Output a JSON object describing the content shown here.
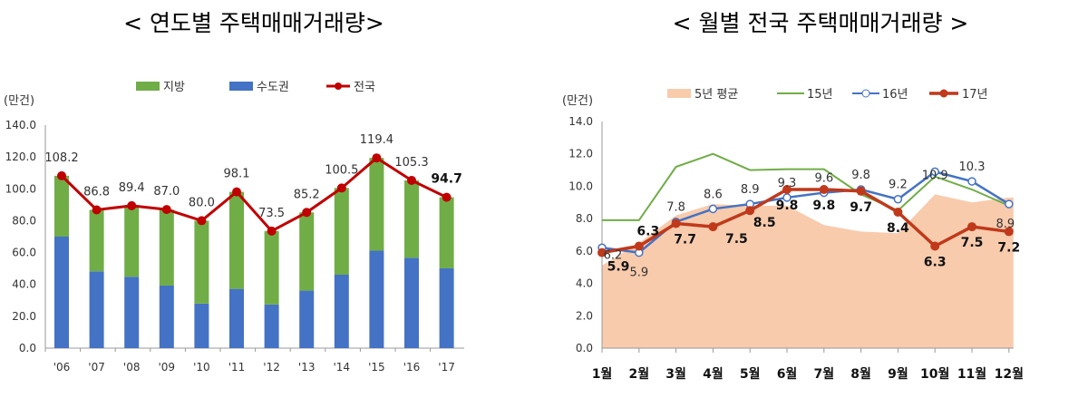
{
  "chart_data": [
    {
      "type": "bar",
      "title": "< 연도별 주택매매거래량>",
      "ylabel": "(만건)",
      "ylim": [
        0,
        140
      ],
      "yticks": [
        "0.0",
        "20.0",
        "40.0",
        "60.0",
        "80.0",
        "100.0",
        "120.0",
        "140.0"
      ],
      "categories": [
        "'06",
        "'07",
        "'08",
        "'09",
        "'10",
        "'11",
        "'12",
        "'13",
        "'14",
        "'15",
        "'16",
        "'17"
      ],
      "stacked": true,
      "legend": "top",
      "series": [
        {
          "name": "지방",
          "kind": "bar",
          "color": "#70ad47",
          "values": [
            38.2,
            38.6,
            44.6,
            47.7,
            52.0,
            60.9,
            46.1,
            49.1,
            54.4,
            58.2,
            48.6,
            44.6
          ]
        },
        {
          "name": "수도권",
          "kind": "bar",
          "color": "#4472c4",
          "values": [
            70.0,
            48.2,
            44.8,
            39.3,
            28.0,
            37.2,
            27.4,
            36.1,
            46.1,
            61.2,
            56.7,
            50.1
          ]
        },
        {
          "name": "전국",
          "kind": "line",
          "color": "#c00000",
          "values": [
            108.2,
            86.8,
            89.4,
            87.0,
            80.0,
            98.1,
            73.5,
            85.2,
            100.5,
            119.4,
            105.3,
            94.7
          ],
          "labels": [
            "108.2",
            "86.8",
            "89.4",
            "87.0",
            "80.0",
            "98.1",
            "73.5",
            "85.2",
            "100.5",
            "119.4",
            "105.3",
            "94.7"
          ]
        }
      ]
    },
    {
      "type": "line",
      "title": "< 월별 전국 주택매매거래량 >",
      "ylabel": "(만건)",
      "ylim": [
        0,
        14
      ],
      "yticks": [
        "0.0",
        "2.0",
        "4.0",
        "6.0",
        "8.0",
        "10.0",
        "12.0",
        "14.0"
      ],
      "categories": [
        "1월",
        "2월",
        "3월",
        "4월",
        "5월",
        "6월",
        "7월",
        "8월",
        "9월",
        "10월",
        "11월",
        "12월"
      ],
      "legend": "top",
      "series": [
        {
          "name": "5년 평균",
          "kind": "area",
          "color": "#f8cbad",
          "values": [
            5.1,
            6.5,
            8.2,
            8.9,
            8.8,
            8.8,
            7.6,
            7.2,
            7.1,
            9.5,
            9.0,
            9.3
          ]
        },
        {
          "name": "15년",
          "kind": "line",
          "color": "#70ad47",
          "values": [
            7.9,
            7.9,
            11.2,
            12.0,
            11.0,
            11.05,
            11.05,
            9.5,
            8.5,
            10.6,
            9.8,
            8.8
          ]
        },
        {
          "name": "16년",
          "kind": "line-open",
          "color": "#4472c4",
          "values": [
            6.2,
            5.9,
            7.8,
            8.6,
            8.9,
            9.3,
            9.6,
            9.8,
            9.2,
            10.9,
            10.3,
            8.9
          ],
          "labels": [
            "6.2",
            "5.9",
            "7.8",
            "8.6",
            "8.9",
            "9.3",
            "9.6",
            "9.8",
            "9.2",
            "10.9",
            "10.3",
            "8.9"
          ]
        },
        {
          "name": "17년",
          "kind": "line-dot",
          "color": "#c0391b",
          "values": [
            5.9,
            6.3,
            7.7,
            7.5,
            8.5,
            9.8,
            9.8,
            9.7,
            8.4,
            6.3,
            7.5,
            7.2
          ],
          "labels": [
            "5.9",
            "6.3",
            "7.7",
            "7.5",
            "8.5",
            "9.8",
            "9.8",
            "9.7",
            "8.4",
            "6.3",
            "7.5",
            "7.2"
          ]
        }
      ]
    }
  ]
}
